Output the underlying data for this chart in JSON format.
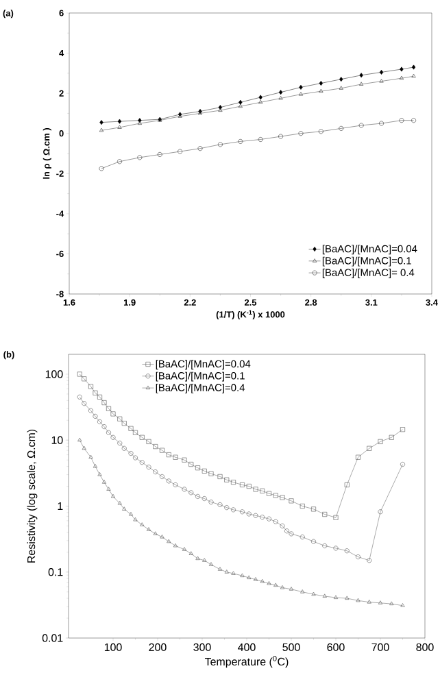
{
  "chart_data": [
    {
      "type": "line",
      "title": "(a)",
      "xlabel": "(1/T) (K$^{-1}$) x 1000",
      "ylabel": "ln ρ ( Ω.cm )",
      "xlim": [
        1.6,
        3.4
      ],
      "ylim": [
        -8,
        6
      ],
      "xticks": [
        1.6,
        1.9,
        2.2,
        2.5,
        2.8,
        3.1,
        3.4
      ],
      "yticks": [
        -8,
        -6,
        -4,
        -2,
        0,
        2,
        4,
        6
      ],
      "legend": "bottom right",
      "line_style": "solid",
      "x": [
        1.76,
        1.85,
        1.95,
        2.05,
        2.15,
        2.25,
        2.35,
        2.45,
        2.55,
        2.65,
        2.75,
        2.85,
        2.95,
        3.05,
        3.15,
        3.25,
        3.31
      ],
      "series": [
        {
          "name": "[BaAC]/[MnAC]=0.04",
          "color": "#000000",
          "marker": "diamond",
          "values": [
            0.55,
            0.6,
            0.65,
            0.7,
            0.95,
            1.1,
            1.3,
            1.55,
            1.8,
            2.05,
            2.3,
            2.5,
            2.7,
            2.9,
            3.05,
            3.2,
            3.3
          ]
        },
        {
          "name": "[BaAC]/[MnAC]=0.1",
          "color": "#333333",
          "marker": "triangle",
          "values": [
            0.15,
            0.3,
            0.5,
            0.65,
            0.85,
            1.0,
            1.15,
            1.35,
            1.55,
            1.75,
            1.95,
            2.1,
            2.25,
            2.45,
            2.6,
            2.75,
            2.85
          ]
        },
        {
          "name": "[BaAC]/[MnAC]= 0.4",
          "color": "#333333",
          "marker": "circle",
          "values": [
            -1.75,
            -1.4,
            -1.2,
            -1.05,
            -0.9,
            -0.75,
            -0.55,
            -0.4,
            -0.3,
            -0.15,
            0.0,
            0.1,
            0.25,
            0.4,
            0.5,
            0.65,
            0.65
          ]
        }
      ]
    },
    {
      "type": "line",
      "title": "(b)",
      "xlabel": "Temperature ($^{0}$C)",
      "ylabel": "Resistivity (log scale, Ω.cm)",
      "xlim": [
        0,
        800
      ],
      "ylim": [
        0.01,
        200
      ],
      "xticks": [
        100,
        200,
        300,
        400,
        500,
        600,
        700,
        800
      ],
      "yticks": [
        0.01,
        0.1,
        1,
        10,
        100
      ],
      "log": "y",
      "legend": "top",
      "line_style": "solid",
      "series": [
        {
          "name": "[BaAC]/[MnAC]=0.04",
          "color": "#555555",
          "marker": "square",
          "x": [
            25,
            35,
            50,
            60,
            70,
            80,
            90,
            100,
            115,
            125,
            140,
            150,
            165,
            180,
            195,
            210,
            225,
            240,
            260,
            275,
            290,
            305,
            320,
            340,
            355,
            370,
            390,
            405,
            420,
            435,
            450,
            465,
            480,
            500,
            525,
            550,
            575,
            600,
            625,
            650,
            675,
            700,
            725,
            750
          ],
          "values": [
            100,
            85,
            65,
            52,
            45,
            37,
            30,
            25,
            21,
            18,
            15,
            13,
            11,
            9.5,
            8,
            7,
            6,
            5.5,
            5,
            4.3,
            3.8,
            3.4,
            3.1,
            2.8,
            2.5,
            2.3,
            2.1,
            2.0,
            1.8,
            1.7,
            1.55,
            1.45,
            1.35,
            1.2,
            1.0,
            0.9,
            0.75,
            0.67,
            2.1,
            5.5,
            7.5,
            9.5,
            11,
            14.5
          ]
        },
        {
          "name": "[BaAC]/[MnAC]=0.1",
          "color": "#555555",
          "marker": "circle",
          "x": [
            25,
            35,
            50,
            60,
            70,
            80,
            90,
            100,
            115,
            125,
            140,
            150,
            165,
            180,
            195,
            210,
            225,
            240,
            260,
            275,
            290,
            305,
            320,
            340,
            355,
            370,
            390,
            405,
            420,
            435,
            450,
            465,
            480,
            490,
            500,
            525,
            550,
            575,
            600,
            625,
            650,
            675,
            700,
            750
          ],
          "values": [
            45,
            36,
            28,
            23,
            19,
            16,
            13,
            11,
            9,
            7.5,
            6.3,
            5.4,
            4.6,
            3.9,
            3.3,
            2.8,
            2.4,
            2.1,
            1.8,
            1.6,
            1.4,
            1.3,
            1.15,
            1.05,
            0.95,
            0.88,
            0.82,
            0.76,
            0.72,
            0.68,
            0.64,
            0.58,
            0.5,
            0.42,
            0.38,
            0.34,
            0.29,
            0.25,
            0.23,
            0.21,
            0.17,
            0.15,
            0.82,
            4.3
          ]
        },
        {
          "name": "[BaAC]/[MnAC]=0.4",
          "color": "#555555",
          "marker": "triangle",
          "x": [
            25,
            35,
            50,
            60,
            70,
            80,
            90,
            100,
            115,
            125,
            140,
            150,
            165,
            180,
            195,
            210,
            225,
            240,
            260,
            275,
            290,
            305,
            320,
            340,
            355,
            370,
            390,
            405,
            420,
            435,
            450,
            465,
            480,
            500,
            525,
            550,
            575,
            600,
            625,
            650,
            675,
            700,
            725,
            750
          ],
          "values": [
            10,
            7.5,
            5.5,
            4,
            3,
            2.3,
            1.8,
            1.4,
            1.1,
            0.9,
            0.75,
            0.62,
            0.52,
            0.44,
            0.38,
            0.34,
            0.29,
            0.25,
            0.22,
            0.19,
            0.16,
            0.15,
            0.13,
            0.11,
            0.1,
            0.095,
            0.088,
            0.082,
            0.077,
            0.072,
            0.067,
            0.063,
            0.058,
            0.055,
            0.05,
            0.046,
            0.043,
            0.041,
            0.04,
            0.037,
            0.035,
            0.034,
            0.033,
            0.031
          ]
        }
      ]
    }
  ]
}
